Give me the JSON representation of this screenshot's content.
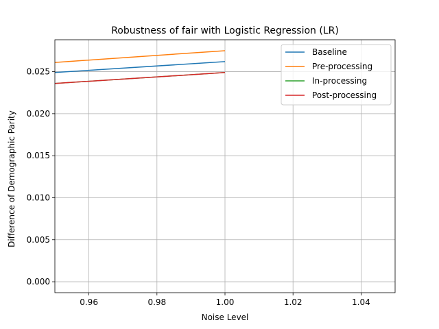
{
  "chart_data": {
    "type": "line",
    "title": "Robustness of fair with Logistic Regression (LR)",
    "xlabel": "Noise Level",
    "ylabel": "Difference of Demographic Parity",
    "xlim": [
      0.95,
      1.05
    ],
    "ylim": [
      -0.0013,
      0.0288
    ],
    "xticks": [
      0.96,
      0.98,
      1.0,
      1.02,
      1.04
    ],
    "xtick_labels": [
      "0.96",
      "0.98",
      "1.00",
      "1.02",
      "1.04"
    ],
    "yticks": [
      0.0,
      0.005,
      0.01,
      0.015,
      0.02,
      0.025
    ],
    "ytick_labels": [
      "0.000",
      "0.005",
      "0.010",
      "0.015",
      "0.020",
      "0.025"
    ],
    "grid": true,
    "legend_position": "top-right",
    "x": [
      0.95,
      1.0
    ],
    "series": [
      {
        "name": "Baseline",
        "color": "#1f77b4",
        "values": [
          0.0249,
          0.0262
        ]
      },
      {
        "name": "Pre-processing",
        "color": "#ff7f0e",
        "values": [
          0.0261,
          0.0275
        ]
      },
      {
        "name": "In-processing",
        "color": "#2ca02c",
        "values": [
          0.0236,
          0.0249
        ]
      },
      {
        "name": "Post-processing",
        "color": "#d62728",
        "values": [
          0.0236,
          0.0249
        ]
      }
    ]
  }
}
